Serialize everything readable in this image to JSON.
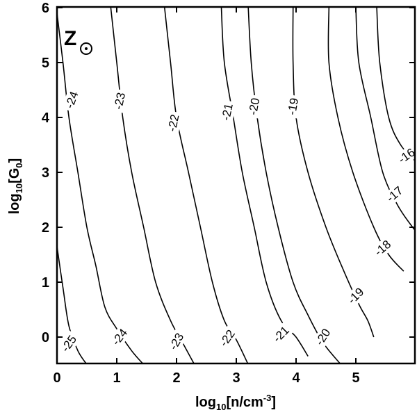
{
  "chart_data": {
    "type": "contour",
    "annotation": "Z",
    "xlabel": {
      "base": "log",
      "sub": "10",
      "main": "[n/cm",
      "sup": "-3",
      "close": "]"
    },
    "ylabel": {
      "base": "log",
      "sub": "10",
      "main": "[G",
      "sub2": "0",
      "close": "]"
    },
    "xlim": [
      0,
      6
    ],
    "ylim": [
      -0.5,
      6
    ],
    "xticks": [
      0,
      1,
      2,
      3,
      4,
      5
    ],
    "yticks": [
      0,
      1,
      2,
      3,
      4,
      5,
      6
    ],
    "xtick_labels": [
      "0",
      "1",
      "2",
      "3",
      "4",
      "5"
    ],
    "ytick_labels": [
      "0",
      "1",
      "2",
      "3",
      "4",
      "5",
      "6"
    ],
    "contours": [
      {
        "level": "-25",
        "points": [
          [
            0.0,
            1.65
          ],
          [
            0.1,
            0.9
          ],
          [
            0.2,
            0.2
          ],
          [
            0.35,
            -0.25
          ],
          [
            0.5,
            -0.5
          ]
        ],
        "labels": [
          {
            "x": 0.2,
            "y": -0.12,
            "angle": -55
          }
        ]
      },
      {
        "level": "-24",
        "points": [
          [
            0.0,
            5.9
          ],
          [
            0.1,
            5.0
          ],
          [
            0.2,
            4.0
          ],
          [
            0.35,
            3.0
          ],
          [
            0.5,
            2.0
          ],
          [
            0.65,
            1.3
          ],
          [
            0.8,
            0.55
          ],
          [
            1.0,
            0.15
          ],
          [
            1.25,
            -0.25
          ],
          [
            1.45,
            -0.5
          ]
        ],
        "labels": [
          {
            "x": 0.25,
            "y": 4.32,
            "angle": -70
          },
          {
            "x": 1.05,
            "y": 0.0,
            "angle": -52
          }
        ]
      },
      {
        "level": "-23",
        "points": [
          [
            0.9,
            6.0
          ],
          [
            1.0,
            5.0
          ],
          [
            1.1,
            4.0
          ],
          [
            1.25,
            3.0
          ],
          [
            1.45,
            2.0
          ],
          [
            1.65,
            1.0
          ],
          [
            1.9,
            0.3
          ],
          [
            2.1,
            -0.1
          ],
          [
            2.3,
            -0.5
          ]
        ],
        "labels": [
          {
            "x": 1.05,
            "y": 4.3,
            "angle": -78
          },
          {
            "x": 2.0,
            "y": -0.08,
            "angle": -60
          }
        ]
      },
      {
        "level": "-22",
        "points": [
          [
            1.8,
            6.0
          ],
          [
            1.9,
            5.0
          ],
          [
            2.0,
            4.0
          ],
          [
            2.2,
            3.0
          ],
          [
            2.4,
            2.0
          ],
          [
            2.6,
            1.0
          ],
          [
            2.8,
            0.3
          ],
          [
            3.0,
            -0.05
          ],
          [
            3.2,
            -0.5
          ]
        ],
        "labels": [
          {
            "x": 1.95,
            "y": 3.9,
            "angle": -78
          },
          {
            "x": 2.85,
            "y": -0.02,
            "angle": -55
          }
        ]
      },
      {
        "level": "-21",
        "points": [
          [
            2.75,
            6.0
          ],
          [
            2.8,
            5.0
          ],
          [
            2.95,
            4.0
          ],
          [
            3.1,
            3.0
          ],
          [
            3.3,
            2.0
          ],
          [
            3.5,
            1.0
          ],
          [
            3.75,
            0.3
          ],
          [
            4.0,
            0.0
          ],
          [
            4.2,
            -0.35
          ]
        ],
        "labels": [
          {
            "x": 2.85,
            "y": 4.1,
            "angle": -78
          },
          {
            "x": 3.75,
            "y": 0.05,
            "angle": -45
          }
        ]
      },
      {
        "level": "-20",
        "points": [
          [
            3.2,
            6.0
          ],
          [
            3.25,
            5.0
          ],
          [
            3.35,
            4.0
          ],
          [
            3.5,
            3.0
          ],
          [
            3.7,
            2.0
          ],
          [
            3.95,
            1.0
          ],
          [
            4.2,
            0.4
          ],
          [
            4.45,
            -0.1
          ],
          [
            4.75,
            -0.5
          ]
        ],
        "labels": [
          {
            "x": 3.3,
            "y": 4.2,
            "angle": -80
          },
          {
            "x": 4.45,
            "y": 0.0,
            "angle": -57
          }
        ]
      },
      {
        "level": "-19",
        "points": [
          [
            3.95,
            6.0
          ],
          [
            3.95,
            5.0
          ],
          [
            4.0,
            4.0
          ],
          [
            4.2,
            3.0
          ],
          [
            4.5,
            2.0
          ],
          [
            4.8,
            1.2
          ],
          [
            5.05,
            0.6
          ],
          [
            5.2,
            0.3
          ],
          [
            5.3,
            0.0
          ]
        ],
        "labels": [
          {
            "x": 3.95,
            "y": 4.2,
            "angle": -80
          },
          {
            "x": 5.0,
            "y": 0.75,
            "angle": -45
          }
        ]
      },
      {
        "level": "-18",
        "points": [
          [
            4.55,
            6.0
          ],
          [
            4.55,
            5.0
          ],
          [
            4.7,
            4.0
          ],
          [
            4.95,
            3.0
          ],
          [
            5.3,
            2.0
          ],
          [
            5.55,
            1.5
          ],
          [
            5.8,
            1.2
          ]
        ],
        "labels": [
          {
            "x": 5.45,
            "y": 1.62,
            "angle": -40
          }
        ]
      },
      {
        "level": "-17",
        "points": [
          [
            5.0,
            6.0
          ],
          [
            5.05,
            5.0
          ],
          [
            5.25,
            4.0
          ],
          [
            5.45,
            3.0
          ],
          [
            5.7,
            2.4
          ],
          [
            5.95,
            2.0
          ],
          [
            6.0,
            1.95
          ]
        ],
        "labels": [
          {
            "x": 5.65,
            "y": 2.6,
            "angle": -40
          }
        ]
      },
      {
        "level": "-16",
        "points": [
          [
            5.35,
            6.0
          ],
          [
            5.4,
            5.0
          ],
          [
            5.55,
            4.0
          ],
          [
            5.75,
            3.5
          ],
          [
            6.0,
            3.2
          ]
        ],
        "labels": [
          {
            "x": 5.85,
            "y": 3.3,
            "angle": -35
          }
        ]
      }
    ]
  }
}
